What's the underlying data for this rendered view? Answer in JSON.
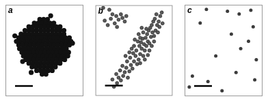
{
  "chart_data": [
    {
      "type": "scatter",
      "title": "a",
      "color": "#111111",
      "marker": "circle",
      "xlim": [
        0,
        100
      ],
      "ylim": [
        0,
        100
      ],
      "tick_labels": false,
      "grid": false,
      "x": [
        44,
        49,
        54,
        37,
        42,
        47,
        52,
        57,
        62,
        30,
        35,
        40,
        45,
        50,
        55,
        60,
        65,
        70,
        25,
        30,
        35,
        40,
        45,
        50,
        55,
        60,
        65,
        70,
        75,
        20,
        25,
        30,
        35,
        40,
        45,
        50,
        55,
        60,
        65,
        70,
        75,
        17,
        22,
        27,
        32,
        37,
        42,
        47,
        52,
        57,
        62,
        67,
        72,
        77,
        82,
        14,
        19,
        24,
        29,
        34,
        39,
        44,
        49,
        54,
        59,
        64,
        69,
        74,
        79,
        84,
        17,
        22,
        27,
        32,
        37,
        42,
        47,
        52,
        57,
        62,
        67,
        72,
        77,
        82,
        18,
        23,
        28,
        33,
        38,
        43,
        48,
        53,
        58,
        63,
        68,
        73,
        78,
        21,
        26,
        31,
        36,
        41,
        46,
        51,
        56,
        61,
        66,
        71,
        76,
        81,
        23,
        28,
        33,
        38,
        43,
        48,
        53,
        58,
        63,
        68,
        73,
        78,
        26,
        31,
        36,
        41,
        46,
        51,
        56,
        61,
        66,
        71,
        76,
        30,
        35,
        40,
        45,
        50,
        55,
        60,
        65,
        70,
        34,
        39,
        44,
        49,
        54,
        59,
        64,
        40,
        45,
        50,
        55,
        60,
        47,
        52,
        12,
        86,
        58,
        80,
        33,
        22
      ],
      "values": [
        84,
        84,
        84,
        80,
        80,
        80,
        80,
        80,
        80,
        76,
        76,
        76,
        76,
        76,
        76,
        76,
        76,
        76,
        72,
        72,
        72,
        72,
        72,
        72,
        72,
        72,
        72,
        72,
        72,
        68,
        68,
        68,
        68,
        68,
        68,
        68,
        68,
        68,
        68,
        68,
        68,
        64,
        64,
        64,
        64,
        64,
        64,
        64,
        64,
        64,
        64,
        64,
        64,
        64,
        64,
        60,
        60,
        60,
        60,
        60,
        60,
        60,
        60,
        60,
        60,
        60,
        60,
        60,
        60,
        60,
        56,
        56,
        56,
        56,
        56,
        56,
        56,
        56,
        56,
        56,
        56,
        56,
        56,
        56,
        52,
        52,
        52,
        52,
        52,
        52,
        52,
        52,
        52,
        52,
        52,
        52,
        52,
        48,
        48,
        48,
        48,
        48,
        48,
        48,
        48,
        48,
        48,
        48,
        48,
        48,
        44,
        44,
        44,
        44,
        44,
        44,
        44,
        44,
        44,
        44,
        44,
        44,
        40,
        40,
        40,
        40,
        40,
        40,
        40,
        40,
        40,
        40,
        40,
        36,
        36,
        36,
        36,
        36,
        36,
        36,
        36,
        36,
        32,
        32,
        32,
        32,
        32,
        32,
        32,
        28,
        28,
        28,
        28,
        28,
        24,
        24,
        66,
        58,
        88,
        44,
        26,
        38
      ]
    },
    {
      "type": "scatter",
      "title": "b",
      "color": "#5a5a5a",
      "marker": "circle",
      "xlim": [
        0,
        100
      ],
      "ylim": [
        0,
        100
      ],
      "tick_labels": false,
      "grid": false,
      "x": [
        10,
        18,
        22,
        27,
        20,
        30,
        35,
        38,
        25,
        12,
        33,
        40,
        16,
        28,
        24,
        28,
        22,
        30,
        27,
        33,
        36,
        32,
        38,
        40,
        35,
        42,
        44,
        46,
        41,
        48,
        50,
        45,
        52,
        54,
        49,
        56,
        58,
        53,
        60,
        57,
        62,
        64,
        59,
        63,
        66,
        61,
        68,
        65,
        70,
        67,
        72,
        55,
        50,
        69,
        74,
        71,
        76,
        78,
        73,
        75,
        80,
        77,
        82,
        84,
        79,
        86,
        81,
        58,
        62,
        66,
        47,
        44,
        39,
        51,
        56,
        60,
        83,
        87,
        70,
        64,
        58,
        68,
        73,
        76
      ],
      "values": [
        97,
        95,
        90,
        88,
        85,
        84,
        86,
        82,
        80,
        83,
        90,
        88,
        78,
        76,
        10,
        14,
        18,
        20,
        24,
        17,
        22,
        28,
        26,
        31,
        33,
        20,
        27,
        34,
        38,
        30,
        38,
        42,
        44,
        35,
        47,
        40,
        46,
        50,
        52,
        55,
        44,
        50,
        59,
        57,
        55,
        63,
        60,
        64,
        58,
        68,
        65,
        60,
        55,
        72,
        70,
        75,
        66,
        72,
        78,
        82,
        78,
        85,
        82,
        88,
        90,
        92,
        70,
        64,
        70,
        74,
        52,
        48,
        44,
        62,
        68,
        75,
        76,
        80,
        50,
        40,
        36,
        45,
        55,
        60
      ]
    },
    {
      "type": "scatter",
      "title": "c",
      "color": "#3c3c3c",
      "marker": "circle",
      "xlim": [
        0,
        100
      ],
      "ylim": [
        0,
        100
      ],
      "tick_labels": false,
      "grid": false,
      "x": [
        28,
        55,
        70,
        85,
        20,
        88,
        60,
        82,
        72,
        40,
        92,
        10,
        66,
        90,
        30,
        48,
        6
      ],
      "values": [
        95,
        93,
        90,
        94,
        80,
        76,
        68,
        60,
        52,
        44,
        40,
        22,
        26,
        18,
        16,
        6,
        10
      ]
    }
  ]
}
